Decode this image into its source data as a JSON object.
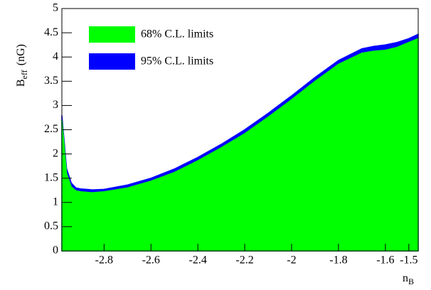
{
  "chart_data": {
    "type": "area",
    "x_label": {
      "text": "n",
      "sub": "B"
    },
    "y_label": {
      "text": "B",
      "sub": "eff",
      "unit": "(nG)"
    },
    "x": [
      -2.98,
      -2.96,
      -2.94,
      -2.92,
      -2.9,
      -2.85,
      -2.8,
      -2.7,
      -2.6,
      -2.5,
      -2.4,
      -2.3,
      -2.2,
      -2.1,
      -2.0,
      -1.9,
      -1.8,
      -1.7,
      -1.65,
      -1.6,
      -1.55,
      -1.5,
      -1.46
    ],
    "series": [
      {
        "name": "95% C.L. limits",
        "color": "#0000ff",
        "values": [
          2.8,
          1.7,
          1.4,
          1.3,
          1.28,
          1.26,
          1.27,
          1.36,
          1.5,
          1.69,
          1.93,
          2.2,
          2.5,
          2.84,
          3.2,
          3.58,
          3.93,
          4.17,
          4.22,
          4.25,
          4.3,
          4.38,
          4.47
        ]
      },
      {
        "name": "68% C.L. limits",
        "color": "#00ff00",
        "values": [
          2.7,
          1.6,
          1.32,
          1.24,
          1.22,
          1.2,
          1.22,
          1.3,
          1.44,
          1.62,
          1.86,
          2.13,
          2.42,
          2.76,
          3.12,
          3.5,
          3.85,
          4.08,
          4.12,
          4.14,
          4.2,
          4.3,
          4.38
        ]
      }
    ],
    "legend_order": [
      1,
      0
    ],
    "xlim": [
      -2.98,
      -1.46
    ],
    "xticks": [
      -2.8,
      -2.6,
      -2.4,
      -2.2,
      -2,
      -1.8,
      -1.6,
      -1.5
    ],
    "ylim": [
      0,
      5
    ],
    "yticks": [
      0,
      0.5,
      1,
      1.5,
      2,
      2.5,
      3,
      3.5,
      4,
      4.5,
      5
    ],
    "legend": "upper left"
  }
}
